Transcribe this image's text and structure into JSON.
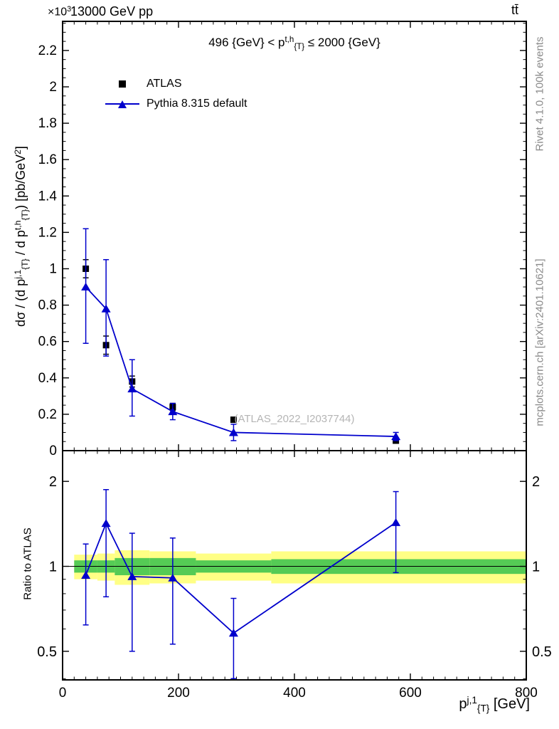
{
  "page": {
    "scale_exponent": [
      {
        "t": "×10"
      },
      {
        "t": "3",
        "s": "sup"
      }
    ],
    "beam_label": "13000 GeV pp",
    "process_label": "tt̄",
    "panel_title": [
      {
        "t": "496 {GeV} < p"
      },
      {
        "t": "t,h",
        "s": "sup"
      },
      {
        "t": "{T}",
        "s": "sub"
      },
      {
        "t": " ≤ 2000 {GeV}"
      }
    ],
    "watermark": "(ATLAS_2022_I2037744)",
    "side_text_top": "Rivet 4.1.0,  100k events",
    "side_text_bottom": "mcplots.cern.ch [arXiv:2401.10621]",
    "ylabel_main_rich": [
      {
        "t": "dσ / (d p"
      },
      {
        "t": "j,1",
        "s": "sup"
      },
      {
        "t": "{T}",
        "s": "sub"
      },
      {
        "t": " / d p"
      },
      {
        "t": "t,h",
        "s": "sup"
      },
      {
        "t": "{T}",
        "s": "sub"
      },
      {
        "t": ") [pb/GeV"
      },
      {
        "t": "2",
        "s": "sup"
      },
      {
        "t": "]"
      }
    ],
    "ylabel_ratio": "Ratio to ATLAS",
    "xlabel_rich": [
      {
        "t": "p"
      },
      {
        "t": "j,1",
        "s": "sup"
      },
      {
        "t": "{T}",
        "s": "sub"
      },
      {
        "t": " [GeV]"
      }
    ]
  },
  "legend": {
    "items": [
      {
        "label": "ATLAS",
        "marker": "square",
        "color": "#000000"
      },
      {
        "label": "Pythia 8.315 default",
        "marker": "triangle-line",
        "color": "#0000cc"
      }
    ]
  },
  "chart_data": {
    "type": "line",
    "title": "496 {GeV} < p_{T}^{t,h} ≤ 2000 {GeV}",
    "xlabel": "p_{T}^{j,1} [GeV]",
    "ylabel": "dσ / (d p_{T}^{j,1} / d p_{T}^{t,h}) [pb/GeV^2]",
    "y_scale_note": "×10^3",
    "xlim": [
      0,
      800
    ],
    "xticks": [
      0,
      200,
      400,
      600,
      800
    ],
    "x": [
      40,
      75,
      120,
      190,
      295,
      575
    ],
    "main": {
      "ylim": [
        0,
        2.36
      ],
      "yticks": [
        0,
        0.2,
        0.4,
        0.6,
        0.8,
        1,
        1.2,
        1.4,
        1.6,
        1.8,
        2,
        2.2
      ],
      "series": [
        {
          "name": "ATLAS",
          "marker": "square",
          "color": "#000000",
          "line": false,
          "values": [
            1.0,
            0.58,
            0.38,
            0.24,
            0.17,
            0.055
          ],
          "err_lo": [
            0.95,
            0.53,
            0.35,
            0.22,
            0.158,
            0.048
          ],
          "err_hi": [
            1.05,
            0.63,
            0.41,
            0.26,
            0.182,
            0.062
          ]
        },
        {
          "name": "Pythia 8.315 default",
          "marker": "triangle",
          "color": "#0000cc",
          "line": true,
          "values": [
            0.9,
            0.78,
            0.34,
            0.215,
            0.1,
            0.078
          ],
          "err_lo": [
            0.59,
            0.52,
            0.19,
            0.17,
            0.055,
            0.055
          ],
          "err_hi": [
            1.22,
            1.05,
            0.5,
            0.26,
            0.145,
            0.1
          ]
        }
      ]
    },
    "ratio": {
      "scale": "log",
      "ylim": [
        0.396,
        2.57
      ],
      "yticks": [
        0.5,
        1,
        2
      ],
      "yticks_minor": [
        0.4,
        0.6,
        0.7,
        0.8,
        0.9
      ],
      "unity": 1,
      "values": [
        0.93,
        1.42,
        0.92,
        0.91,
        0.58,
        1.43
      ],
      "err_lo": [
        0.62,
        0.78,
        0.5,
        0.53,
        0.4,
        0.95
      ],
      "err_hi": [
        1.2,
        1.87,
        1.31,
        1.26,
        0.77,
        1.84
      ],
      "bands": {
        "bins": [
          [
            20,
            60
          ],
          [
            60,
            90
          ],
          [
            90,
            150
          ],
          [
            150,
            230
          ],
          [
            230,
            360
          ],
          [
            360,
            800
          ]
        ],
        "yellow_lo": [
          0.9,
          0.89,
          0.86,
          0.87,
          0.89,
          0.87
        ],
        "yellow_hi": [
          1.1,
          1.11,
          1.14,
          1.13,
          1.11,
          1.13
        ],
        "green_lo": [
          0.95,
          0.95,
          0.93,
          0.93,
          0.95,
          0.94
        ],
        "green_hi": [
          1.05,
          1.05,
          1.07,
          1.07,
          1.05,
          1.06
        ],
        "yellow_color": "#ffff85",
        "green_color": "#55cb55"
      }
    }
  }
}
